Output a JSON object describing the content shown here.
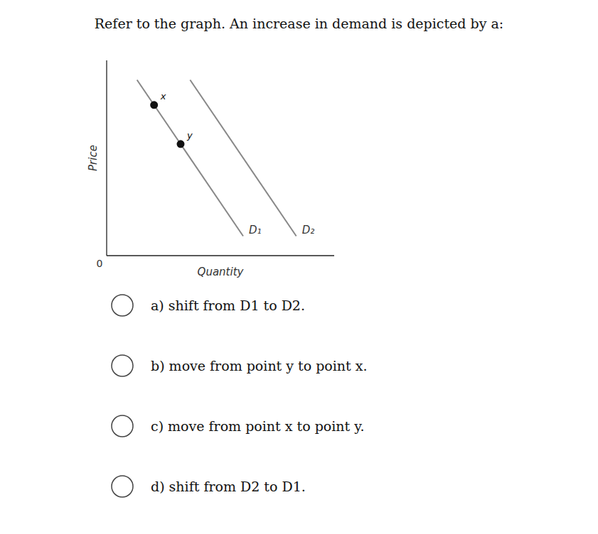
{
  "chart_data": {
    "type": "line",
    "title": "Refer to the graph. An increase in demand is depicted by a:",
    "x_label": "Quantity",
    "y_label": "Price",
    "origin_label": "0",
    "xlim": [
      0,
      6
    ],
    "ylim": [
      0,
      10
    ],
    "tick_labels": false,
    "grid": false,
    "series": [
      {
        "name": "D₁",
        "type": "line",
        "color": "#888888",
        "x": [
          0.8,
          3.6
        ],
        "values": [
          9.0,
          1.0
        ]
      },
      {
        "name": "D₂",
        "type": "line",
        "color": "#888888",
        "x": [
          2.2,
          5.0
        ],
        "values": [
          9.0,
          1.0
        ]
      },
      {
        "type": "scatter",
        "marker": "circle",
        "color": "#111111",
        "x": [
          1.25,
          1.95
        ],
        "values": [
          7.714285714285714,
          5.714285714285714
        ],
        "labels": [
          "x",
          "y"
        ]
      }
    ],
    "options": [
      "a) shift from D1 to D2.",
      "b) move from point y to point x.",
      "c) move from point x to point y.",
      "d) shift from D2 to D1."
    ]
  }
}
